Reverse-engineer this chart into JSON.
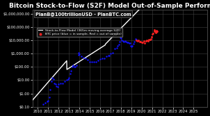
{
  "title": "Bitcoin Stock-to-Flow (S2F) Model Out-of-Sample Performance",
  "background_color": "#000000",
  "grid_color": "#404040",
  "text_color": "#ffffff",
  "watermark": "PlanB@100trillionUSD - PlanBTC.com",
  "legend_line": "Stock-to-Flow Model (365m moving average S2F)",
  "legend_dots": "BTC price (blue = in sample, Red = out of sample)",
  "xlabel_years": [
    "2010",
    "2011",
    "2012",
    "2013",
    "2014",
    "2015",
    "2016",
    "2017",
    "2018",
    "2019",
    "2020",
    "2021",
    "2022",
    "2023",
    "2024",
    "2025"
  ],
  "ylim_log": [
    0.1,
    2000000.0
  ],
  "yticks": [
    0.1,
    1.0,
    10.0,
    100.0,
    1000.0,
    10000.0,
    100000.0,
    1000000.0
  ],
  "ytick_labels": [
    "$0.10",
    "$1.00",
    "$10.00",
    "$100.00",
    "$1,000.00",
    "$10,000.00",
    "$100,000.00",
    "$1,000,000.00"
  ],
  "model_color": "#ffffff",
  "insample_color": "#1111ff",
  "outsample_color": "#ff2222",
  "title_fontsize": 6.5,
  "watermark_fontsize": 4.8,
  "legend_fontsize": 3.2,
  "tick_fontsize": 3.8,
  "xlim": [
    2009.5,
    2026.3
  ]
}
